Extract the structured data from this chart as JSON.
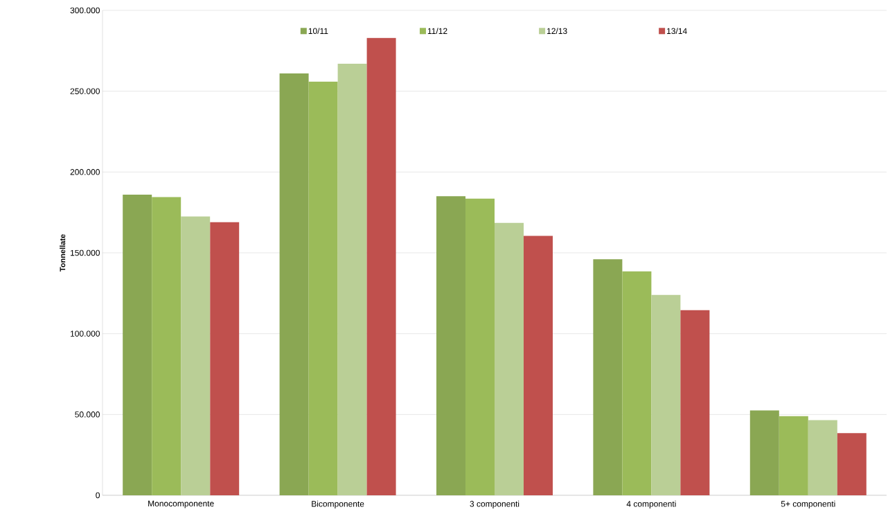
{
  "chart_data": {
    "type": "bar",
    "ylabel": "Tonnellate",
    "categories": [
      "Monocomponente",
      "Bicomponente",
      "3 componenti",
      "4 componenti",
      "5+ componenti"
    ],
    "series": [
      {
        "name": "10/11",
        "color": "#8aa753",
        "values": [
          186000,
          261000,
          185000,
          146000,
          52500
        ]
      },
      {
        "name": "11/12",
        "color": "#9bbb59",
        "values": [
          184500,
          256000,
          183500,
          138500,
          49000
        ]
      },
      {
        "name": "12/13",
        "color": "#bacf96",
        "values": [
          172500,
          267000,
          168500,
          124000,
          46500
        ]
      },
      {
        "name": "13/14",
        "color": "#c0504d",
        "values": [
          169000,
          283000,
          160500,
          114500,
          38500
        ]
      }
    ],
    "ylim": [
      0,
      300000
    ],
    "yticks": [
      {
        "value": 0,
        "label": "0"
      },
      {
        "value": 50000,
        "label": "50.000"
      },
      {
        "value": 100000,
        "label": "100.000"
      },
      {
        "value": 150000,
        "label": "150.000"
      },
      {
        "value": 200000,
        "label": "200.000"
      },
      {
        "value": 250000,
        "label": "250.000"
      },
      {
        "value": 300000,
        "label": "300.000"
      }
    ],
    "grid": "y",
    "legend": "top"
  }
}
